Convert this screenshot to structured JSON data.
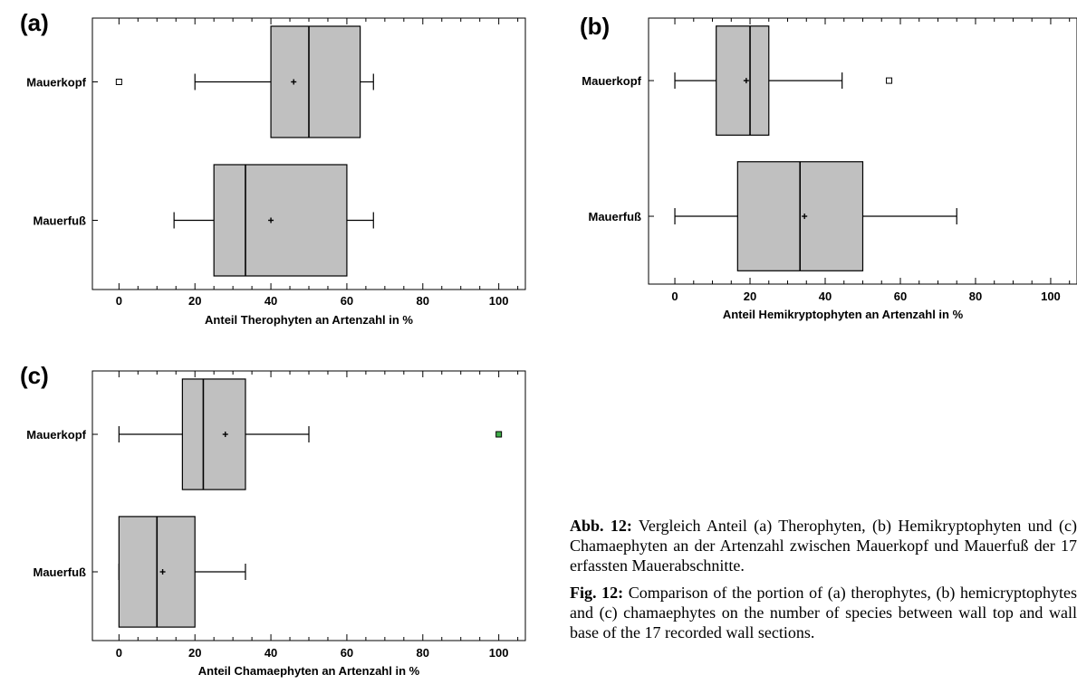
{
  "chart_data": [
    {
      "type": "box",
      "panel_label": "(a)",
      "xlabel": "Anteil Therophyten an Artenzahl in %",
      "xlim": [
        -7,
        107
      ],
      "xticks": [
        0,
        20,
        40,
        60,
        80,
        100
      ],
      "categories": [
        "Mauerkopf",
        "Mauerfuß"
      ],
      "boxes": [
        {
          "category": "Mauerkopf",
          "whisker_low": 20,
          "q1": 40,
          "median": 50,
          "q3": 63.5,
          "whisker_high": 67,
          "mean": 46,
          "outliers": [
            0
          ]
        },
        {
          "category": "Mauerfuß",
          "whisker_low": 14.5,
          "q1": 25,
          "median": 33.3,
          "q3": 60,
          "whisker_high": 67,
          "mean": 40,
          "outliers": []
        }
      ],
      "grid": false
    },
    {
      "type": "box",
      "panel_label": "(b)",
      "xlabel": "Anteil Hemikryptophyten an Artenzahl in %",
      "xlim": [
        -7,
        107
      ],
      "xticks": [
        0,
        20,
        40,
        60,
        80,
        100
      ],
      "categories": [
        "Mauerkopf",
        "Mauerfuß"
      ],
      "boxes": [
        {
          "category": "Mauerkopf",
          "whisker_low": 0,
          "q1": 11,
          "median": 20,
          "q3": 25,
          "whisker_high": 44.5,
          "mean": 19,
          "outliers": [
            57
          ]
        },
        {
          "category": "Mauerfuß",
          "whisker_low": 0,
          "q1": 16.7,
          "median": 33.3,
          "q3": 50,
          "whisker_high": 75,
          "mean": 34.5,
          "outliers": []
        }
      ],
      "grid": false
    },
    {
      "type": "box",
      "panel_label": "(c)",
      "xlabel": "Anteil Chamaephyten an Artenzahl in %",
      "xlim": [
        -7,
        107
      ],
      "xticks": [
        0,
        20,
        40,
        60,
        80,
        100
      ],
      "categories": [
        "Mauerkopf",
        "Mauerfuß"
      ],
      "boxes": [
        {
          "category": "Mauerkopf",
          "whisker_low": 0,
          "q1": 16.7,
          "median": 22.2,
          "q3": 33.3,
          "whisker_high": 50,
          "mean": 28,
          "outliers": [
            100
          ]
        },
        {
          "category": "Mauerfuß",
          "whisker_low": 0,
          "q1": 0,
          "median": 10,
          "q3": 20,
          "whisker_high": 33.3,
          "mean": 11.5,
          "outliers": []
        }
      ],
      "grid": false
    }
  ],
  "colors": {
    "box_fill": "#c0c0c0",
    "line": "#000000",
    "outlier_fill": "#ffffff",
    "extreme_outlier_fill": "#3fae49"
  },
  "caption": {
    "de_label": "Abb. 12:",
    "de_text": "Vergleich Anteil (a) Therophyten, (b) Hemikryptophyten und (c) Chamaephyten an der Artenzahl zwischen Mauerkopf und Mauerfuß der 17 erfassten Mauerabschnitte.",
    "en_label": "Fig. 12:",
    "en_text": "Comparison of the portion of (a) therophytes, (b) hemicryptophytes and (c) chamaephytes on the number of species between wall top and wall base of the 17 recorded wall sections."
  }
}
